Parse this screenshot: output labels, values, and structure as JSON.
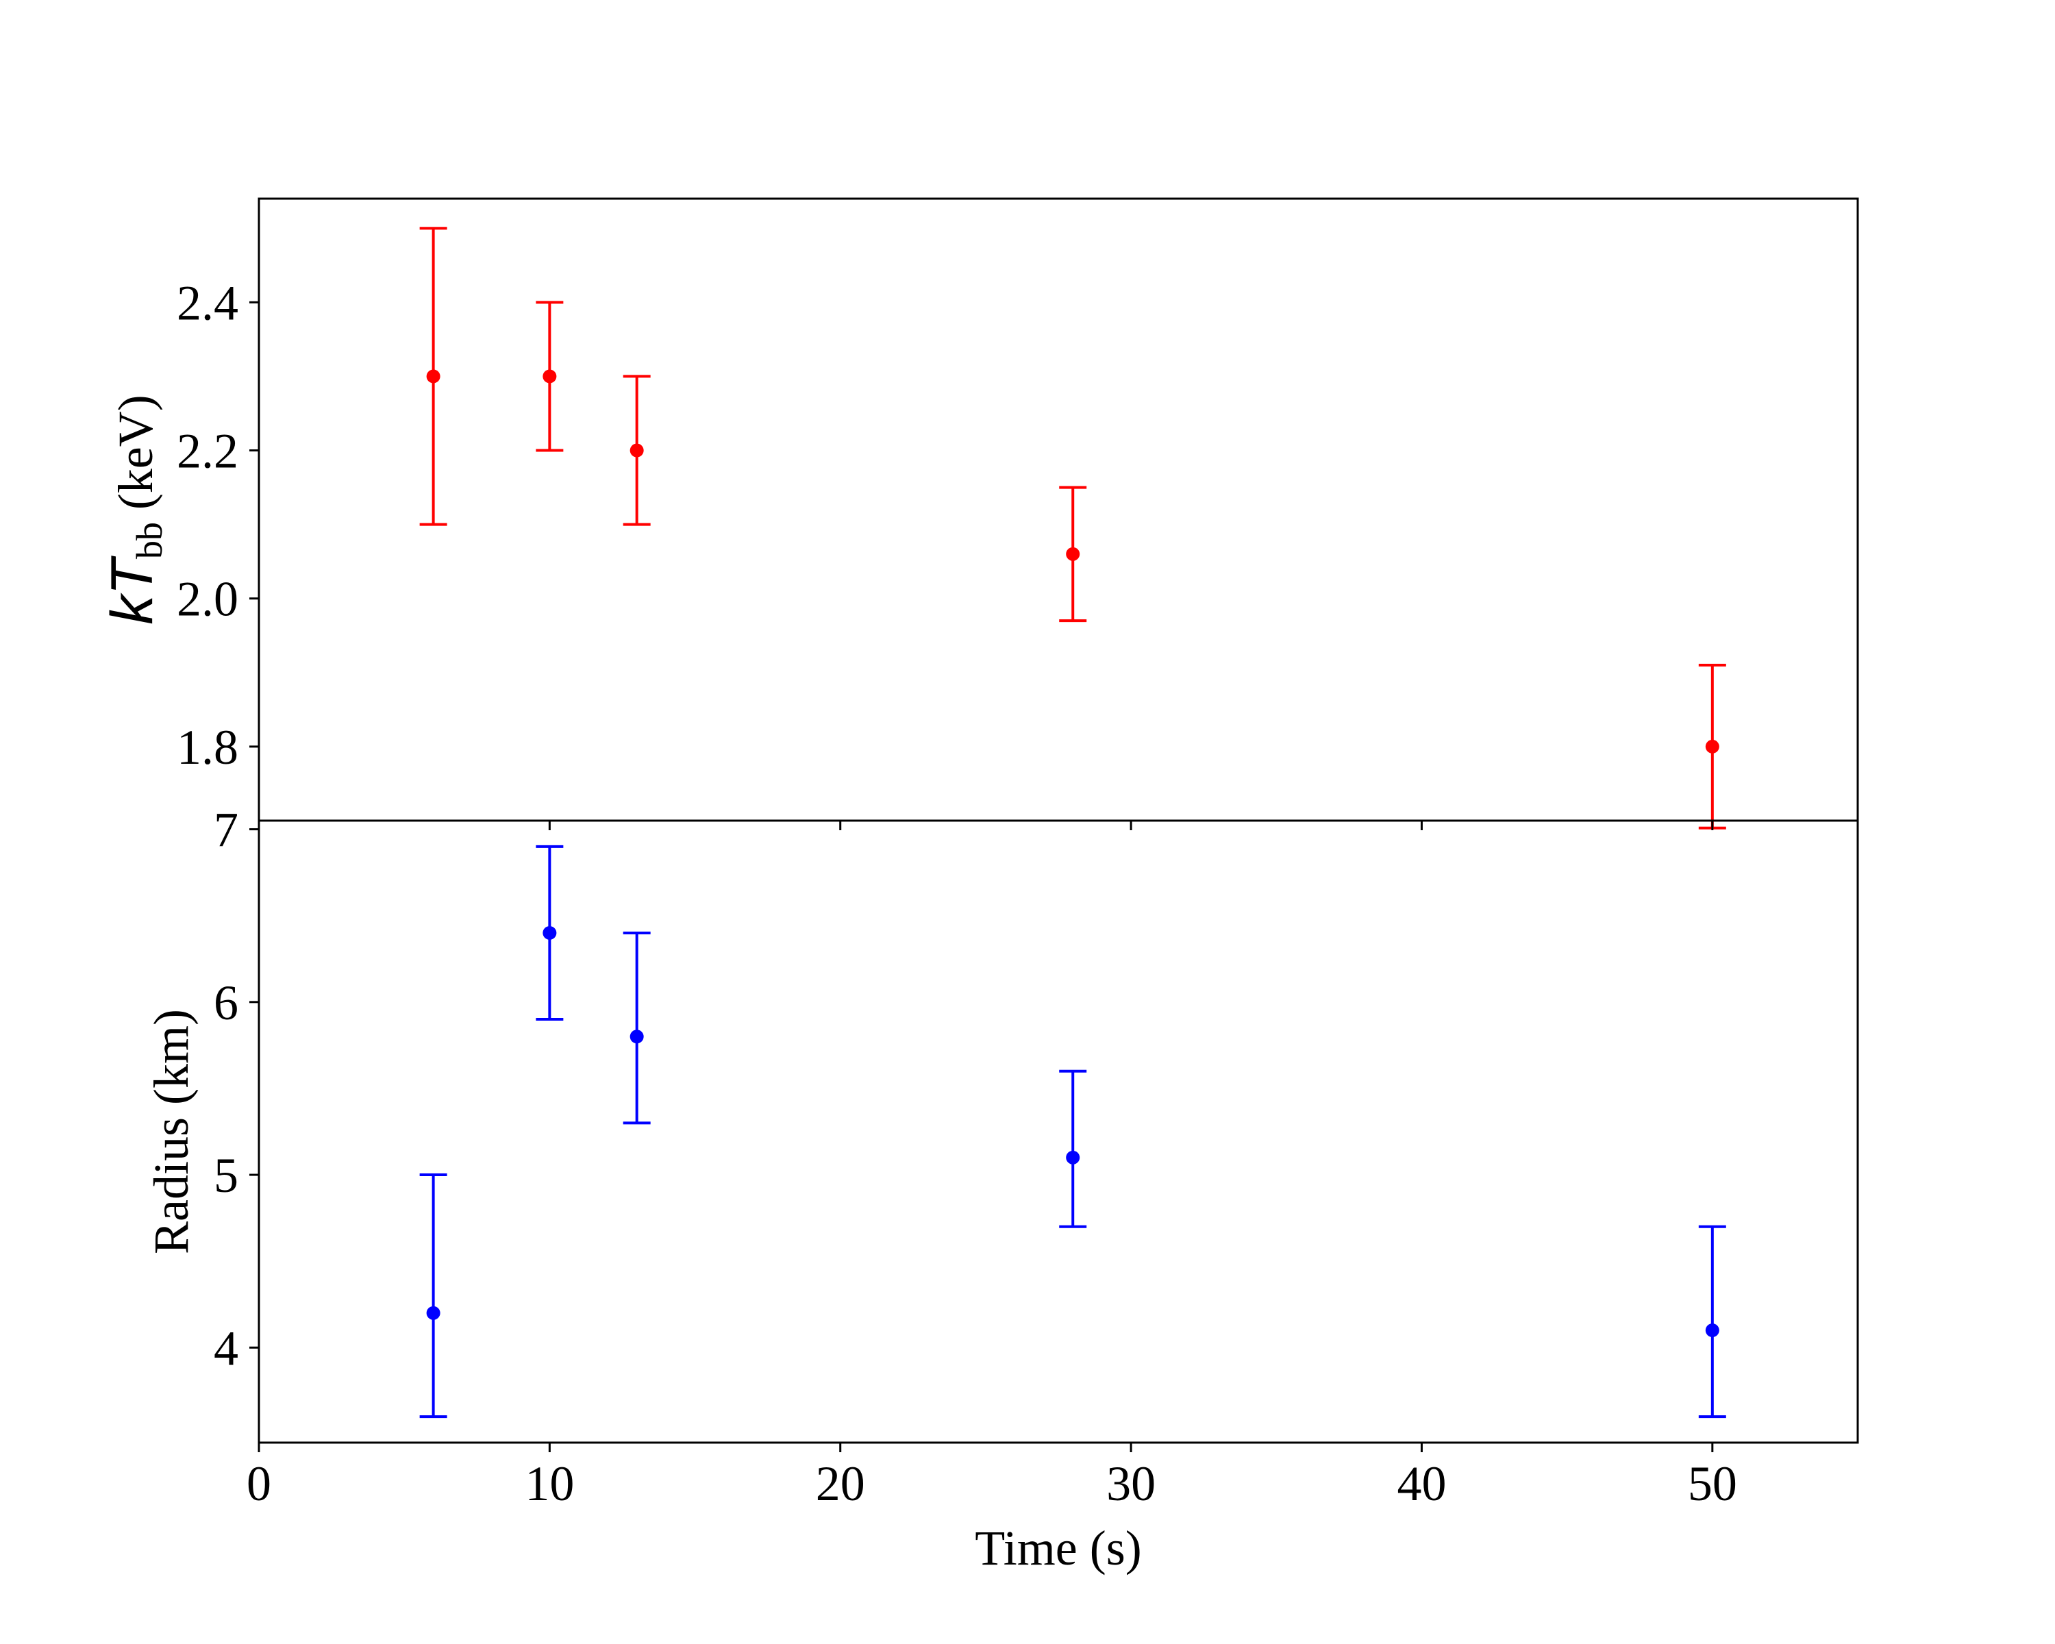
{
  "chart_data": [
    {
      "type": "scatter",
      "panel": "top",
      "xlim": [
        0,
        55
      ],
      "ylim": [
        1.7,
        2.54
      ],
      "yticks": [
        1.8,
        2.0,
        2.2,
        2.4
      ],
      "ytick_labels": [
        "1.8",
        "2.0",
        "2.2",
        "2.4"
      ],
      "ylabel": {
        "prefix": "kT",
        "subscript": "bb",
        "suffix": " (keV)"
      },
      "x_tick_labels_visible": false,
      "grid": false,
      "color": "#ff0000",
      "series": [
        {
          "points": [
            {
              "x": 6,
              "y": 2.3,
              "ylo": 2.1,
              "yhi": 2.5
            },
            {
              "x": 10,
              "y": 2.3,
              "ylo": 2.2,
              "yhi": 2.4
            },
            {
              "x": 13,
              "y": 2.2,
              "ylo": 2.1,
              "yhi": 2.3
            },
            {
              "x": 28,
              "y": 2.06,
              "ylo": 1.97,
              "yhi": 2.15
            },
            {
              "x": 50,
              "y": 1.8,
              "ylo": 1.69,
              "yhi": 1.91
            }
          ]
        }
      ]
    },
    {
      "type": "scatter",
      "panel": "bottom",
      "xlim": [
        0,
        55
      ],
      "ylim": [
        3.45,
        7.05
      ],
      "xticks": [
        0,
        10,
        20,
        30,
        40,
        50
      ],
      "xtick_labels": [
        "0",
        "10",
        "20",
        "30",
        "40",
        "50"
      ],
      "yticks": [
        4,
        5,
        6,
        7
      ],
      "ytick_labels": [
        "4",
        "5",
        "6",
        "7"
      ],
      "xlabel": "Time (s)",
      "ylabel": "Radius (km)",
      "grid": false,
      "color": "#0000ff",
      "series": [
        {
          "points": [
            {
              "x": 6,
              "y": 4.2,
              "ylo": 3.6,
              "yhi": 5.0
            },
            {
              "x": 10,
              "y": 6.4,
              "ylo": 5.9,
              "yhi": 6.9
            },
            {
              "x": 13,
              "y": 5.8,
              "ylo": 5.3,
              "yhi": 6.4
            },
            {
              "x": 28,
              "y": 5.1,
              "ylo": 4.7,
              "yhi": 5.6
            },
            {
              "x": 50,
              "y": 4.1,
              "ylo": 3.6,
              "yhi": 4.7
            }
          ]
        }
      ]
    }
  ]
}
